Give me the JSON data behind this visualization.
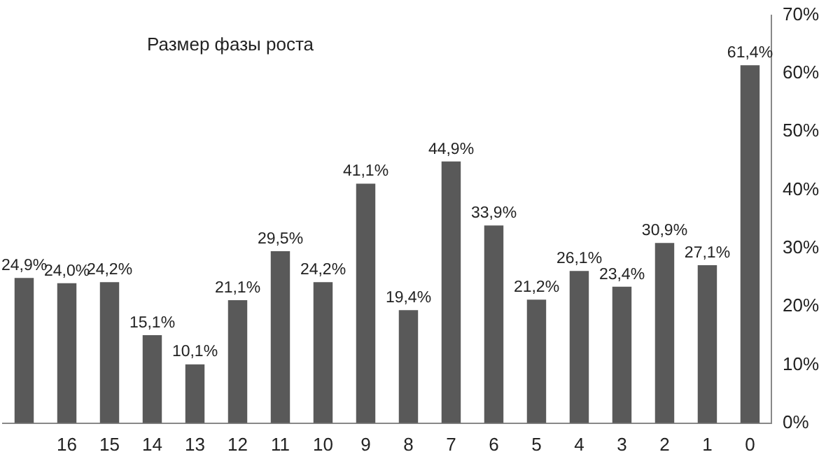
{
  "chart_data": {
    "type": "bar",
    "title": "Размер фазы роста",
    "categories": [
      null,
      "16",
      "15",
      "14",
      "13",
      "12",
      "11",
      "10",
      "9",
      "8",
      "7",
      "6",
      "5",
      "4",
      "3",
      "2",
      "1",
      "0"
    ],
    "values": [
      24.9,
      24.0,
      24.2,
      15.1,
      10.1,
      21.1,
      29.5,
      24.2,
      41.1,
      19.4,
      44.9,
      33.9,
      21.2,
      26.1,
      23.4,
      30.9,
      27.1,
      61.4
    ],
    "value_labels": [
      "24,9%",
      "24,0%",
      "24,2%",
      "15,1%",
      "10,1%",
      "21,1%",
      "29,5%",
      "24,2%",
      "41,1%",
      "19,4%",
      "44,9%",
      "33,9%",
      "21,2%",
      "26,1%",
      "23,4%",
      "30,9%",
      "27,1%",
      "61,4%"
    ],
    "color": "#595959",
    "ylim": [
      0,
      70
    ],
    "yticks": [
      {
        "value": 0,
        "label": "0%"
      },
      {
        "value": 10,
        "label": "10%"
      },
      {
        "value": 20,
        "label": "20%"
      },
      {
        "value": 30,
        "label": "30%"
      },
      {
        "value": 40,
        "label": "40%"
      },
      {
        "value": 50,
        "label": "50%"
      },
      {
        "value": 60,
        "label": "60%"
      },
      {
        "value": 70,
        "label": "70%"
      }
    ],
    "grid": false,
    "legend": false
  }
}
